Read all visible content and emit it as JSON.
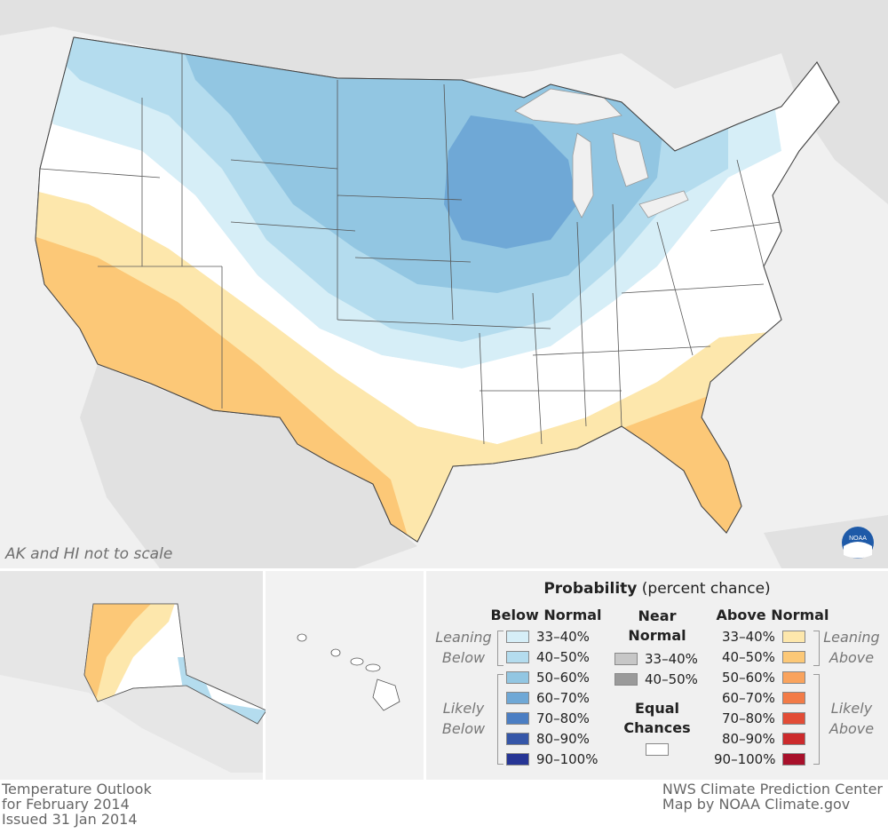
{
  "map": {
    "note": "AK and HI not to scale",
    "logo_text": "NOAA",
    "colors": {
      "land_gray": "#e0e0e0",
      "water": "#f0f0f0",
      "equal": "#ffffff",
      "below_33_40": "#d6eef7",
      "below_40_50": "#b4dcee",
      "below_50_60": "#92c6e2",
      "below_60_70": "#6fa8d6",
      "above_33_40": "#fde7ac",
      "above_40_50": "#fcc877"
    }
  },
  "legend": {
    "title_bold": "Probability",
    "title_rest": "(percent chance)",
    "below_header": "Below Normal",
    "near_header": "Near Normal",
    "above_header": "Above Normal",
    "equal_header": "Equal Chances",
    "leaning_below": "Leaning Below",
    "likely_below": "Likely Below",
    "leaning_above": "Leaning Above",
    "likely_above": "Likely Above",
    "below": [
      {
        "label": "33–40%",
        "color": "#d6eef7"
      },
      {
        "label": "40–50%",
        "color": "#b4dcee"
      },
      {
        "label": "50–60%",
        "color": "#92c6e2"
      },
      {
        "label": "60–70%",
        "color": "#6fa8d6"
      },
      {
        "label": "70–80%",
        "color": "#4b7ec3"
      },
      {
        "label": "80–90%",
        "color": "#3556a8"
      },
      {
        "label": "90–100%",
        "color": "#263595"
      }
    ],
    "near": [
      {
        "label": "33–40%",
        "color": "#c7c7c7"
      },
      {
        "label": "40–50%",
        "color": "#9a9a9a"
      }
    ],
    "above": [
      {
        "label": "33–40%",
        "color": "#fde7ac"
      },
      {
        "label": "40–50%",
        "color": "#fcc877"
      },
      {
        "label": "50–60%",
        "color": "#f9a35d"
      },
      {
        "label": "60–70%",
        "color": "#f27b47"
      },
      {
        "label": "70–80%",
        "color": "#e24c36"
      },
      {
        "label": "80–90%",
        "color": "#cc2a2c"
      },
      {
        "label": "90–100%",
        "color": "#a8102a"
      }
    ]
  },
  "footer": {
    "left_line1": "Temperature Outlook",
    "left_line2": "for February 2014",
    "left_line3": "Issued 31 Jan 2014",
    "right_line1": "NWS Climate Prediction Center",
    "right_line2": "Map by NOAA Climate.gov"
  }
}
